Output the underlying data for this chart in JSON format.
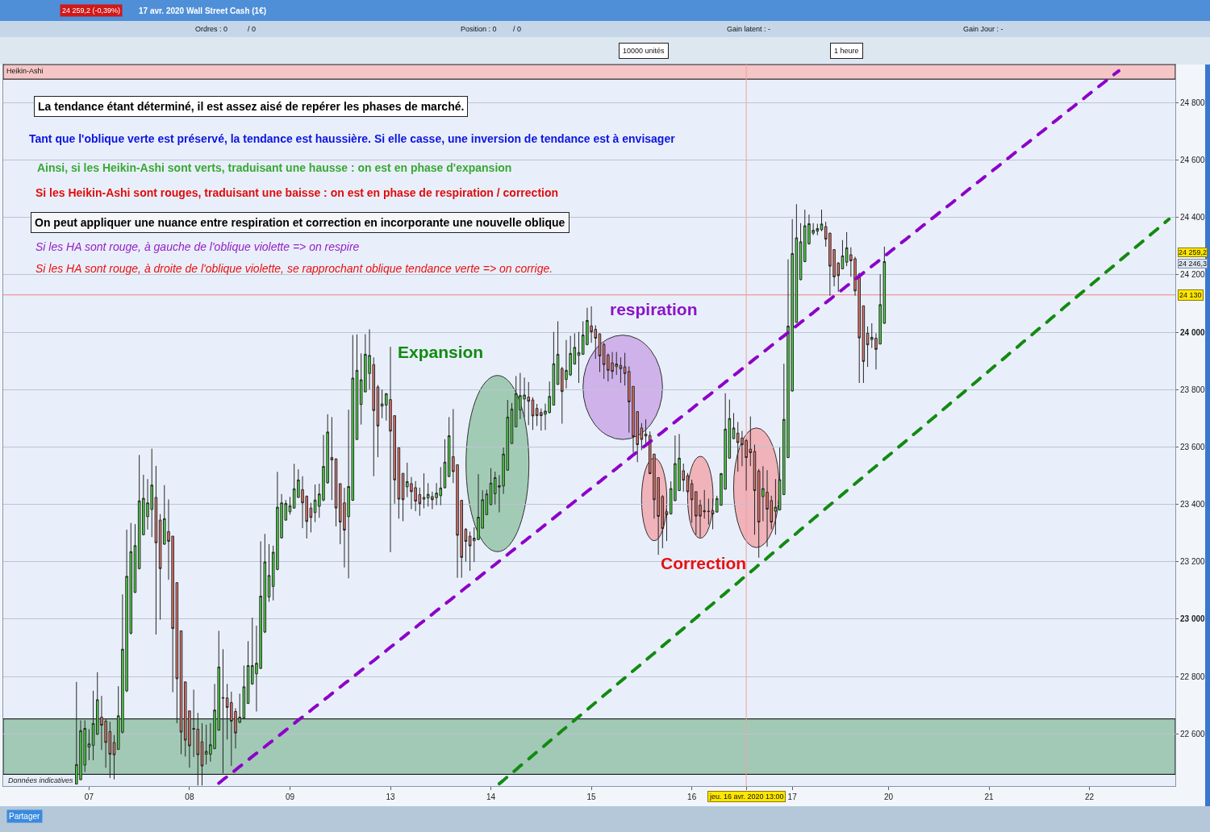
{
  "chart_data": {
    "type": "candlestick",
    "title": "17 avr. 2020 Wall Street Cash (1€)",
    "categories": [
      null,
      null,
      null,
      null,
      null,
      null,
      null,
      null,
      null,
      null,
      null,
      null,
      null,
      null,
      null,
      null,
      null,
      null,
      null,
      null,
      "07",
      null,
      null,
      null,
      null,
      null,
      null,
      null,
      null,
      null,
      null,
      null,
      null,
      null,
      null,
      null,
      null,
      null,
      null,
      null,
      null,
      null,
      null,
      null,
      "08",
      null,
      null,
      null,
      null,
      null,
      null,
      null,
      null,
      null,
      null,
      null,
      null,
      null,
      null,
      null,
      null,
      null,
      null,
      null,
      null,
      null,
      null,
      null,
      "09",
      null,
      null,
      null,
      null,
      null,
      null,
      null,
      null,
      null,
      null,
      null,
      null,
      null,
      null,
      null,
      null,
      null,
      null,
      null,
      null,
      null,
      null,
      null,
      "13",
      null,
      null,
      null,
      null,
      null,
      null,
      null,
      null,
      null,
      null,
      null,
      null,
      null,
      null,
      null,
      null,
      null,
      null,
      null,
      null,
      null,
      null,
      null,
      "14",
      null,
      null,
      null,
      null,
      null,
      null,
      null,
      null,
      null,
      null,
      null,
      null,
      null,
      null,
      null,
      null,
      null,
      null,
      null,
      null,
      null,
      null,
      null,
      "15",
      null,
      null,
      null,
      null,
      null,
      null,
      null,
      null,
      null,
      null,
      null,
      null,
      null,
      null,
      null,
      null,
      null,
      null,
      null,
      null,
      null,
      null,
      null,
      "16",
      null,
      null,
      null,
      null,
      null,
      null,
      null,
      null,
      null,
      null,
      null,
      null,
      "jeu. 16 avr. 2020 13:00",
      null,
      null,
      null,
      null,
      null,
      null,
      null,
      null,
      null,
      null,
      "17",
      null,
      null,
      null,
      null,
      null,
      null,
      null,
      null,
      null,
      null,
      null,
      null,
      null,
      null,
      null,
      null,
      null,
      null,
      null,
      null,
      null,
      null,
      "20",
      null,
      null,
      null,
      null,
      null,
      null,
      null,
      null,
      null,
      null,
      null,
      null,
      null,
      null,
      null,
      null,
      null,
      null,
      null,
      null,
      null,
      null,
      null,
      "21",
      null,
      null,
      null,
      null,
      null,
      null,
      null,
      null,
      null,
      null,
      null,
      null,
      null,
      null,
      null,
      null,
      null,
      null,
      null,
      null,
      null,
      null,
      null,
      "22",
      null,
      null,
      null,
      null,
      null,
      null,
      null,
      null,
      null,
      null,
      null,
      null,
      null,
      null,
      null,
      null,
      null,
      null,
      null,
      null
    ],
    "ohlc": [
      null,
      null,
      null,
      null,
      null,
      null,
      null,
      null,
      null,
      null,
      null,
      null,
      null,
      null,
      null,
      null,
      null,
      [
        22425,
        22781,
        22425,
        22493
      ],
      [
        22440,
        22647,
        22440,
        22611
      ],
      [
        22491,
        22647,
        22467,
        22619
      ],
      [
        22554,
        22616,
        22508,
        22565
      ],
      [
        22560,
        22750,
        22508,
        22636
      ],
      [
        22599,
        22815,
        22596,
        22719
      ],
      [
        22658,
        22732,
        22544,
        22630
      ],
      [
        22644,
        22652,
        22482,
        22570
      ],
      [
        22608,
        22642,
        22446,
        22529
      ],
      [
        22570,
        22596,
        22441,
        22527
      ],
      [
        22546,
        22766,
        22544,
        22663
      ],
      [
        22606,
        23086,
        22601,
        22895
      ],
      [
        22750,
        23312,
        22745,
        23149
      ],
      [
        22951,
        23335,
        22946,
        23235
      ],
      [
        23093,
        23331,
        23091,
        23256
      ],
      [
        23176,
        23572,
        23173,
        23412
      ],
      [
        23294,
        23503,
        23292,
        23421
      ],
      [
        23357,
        23488,
        23312,
        23405
      ],
      [
        23382,
        23594,
        23286,
        23467
      ],
      [
        23424,
        23534,
        22946,
        23266
      ],
      [
        23345,
        23366,
        22998,
        23176
      ],
      [
        23261,
        23467,
        23259,
        23350
      ],
      [
        23305,
        23417,
        23137,
        23271
      ],
      [
        23289,
        23289,
        22745,
        22967
      ],
      [
        23127,
        23127,
        22637,
        22792
      ],
      [
        22959,
        22959,
        22529,
        22606
      ],
      [
        22781,
        22781,
        22521,
        22578
      ],
      [
        22680,
        22680,
        22482,
        22558
      ],
      [
        22619,
        22754,
        22519,
        22616
      ],
      [
        22616,
        22673,
        22420,
        22527
      ],
      [
        22572,
        22637,
        22420,
        22488
      ],
      [
        22529,
        22632,
        22493,
        22539
      ],
      [
        22529,
        22637,
        22503,
        22562
      ],
      [
        22549,
        22774,
        22546,
        22683
      ],
      [
        22613,
        22959,
        22611,
        22833
      ],
      [
        22724,
        22895,
        22462,
        22726
      ],
      [
        22725,
        22774,
        22580,
        22692
      ],
      [
        22709,
        22747,
        22488,
        22644
      ],
      [
        22678,
        22689,
        22549,
        22603
      ],
      [
        22640,
        22740,
        22637,
        22658
      ],
      [
        22655,
        22838,
        22653,
        22764
      ],
      [
        22706,
        22923,
        22704,
        22838
      ],
      [
        22774,
        23005,
        22771,
        22838
      ],
      [
        22809,
        22977,
        22678,
        22846
      ],
      [
        22828,
        23271,
        22826,
        23080
      ],
      [
        22955,
        23297,
        22951,
        23199
      ],
      [
        23077,
        23261,
        23060,
        23152
      ],
      [
        23114,
        23256,
        23065,
        23233
      ],
      [
        23173,
        23513,
        23170,
        23390
      ],
      [
        23283,
        23436,
        23281,
        23405
      ],
      [
        23345,
        23415,
        23343,
        23403
      ],
      [
        23374,
        23426,
        23364,
        23395
      ],
      [
        23387,
        23541,
        23385,
        23454
      ],
      [
        23424,
        23522,
        23423,
        23485
      ],
      [
        23451,
        23498,
        23317,
        23405
      ],
      [
        23428,
        23431,
        23281,
        23340
      ],
      [
        23387,
        23405,
        23302,
        23354
      ],
      [
        23371,
        23469,
        23338,
        23415
      ],
      [
        23393,
        23472,
        23353,
        23436
      ],
      [
        23415,
        23642,
        23410,
        23532
      ],
      [
        23475,
        23714,
        23472,
        23652
      ],
      [
        23563,
        23704,
        23415,
        23555
      ],
      [
        23558,
        23560,
        23323,
        23387
      ],
      [
        23472,
        23472,
        23261,
        23338
      ],
      [
        23405,
        23457,
        23180,
        23310
      ],
      [
        23357,
        23730,
        23142,
        23462
      ],
      [
        23414,
        23990,
        23412,
        23840
      ],
      [
        23626,
        23992,
        23624,
        23867
      ],
      [
        23748,
        23926,
        23678,
        23834
      ],
      [
        23792,
        23993,
        23790,
        23923
      ],
      [
        23856,
        24010,
        23800,
        23919
      ],
      [
        23887,
        23912,
        23498,
        23727
      ],
      [
        23809,
        23816,
        23564,
        23673
      ],
      [
        23742,
        23800,
        23700,
        23750
      ],
      [
        23746,
        23786,
        23692,
        23786
      ],
      [
        23765,
        23949,
        23233,
        23655
      ],
      [
        23709,
        23709,
        23402,
        23485
      ],
      [
        23597,
        23597,
        23350,
        23418
      ],
      [
        23508,
        23508,
        23341,
        23416
      ],
      [
        23461,
        23545,
        23425,
        23479
      ],
      [
        23472,
        23495,
        23383,
        23444
      ],
      [
        23458,
        23481,
        23376,
        23411
      ],
      [
        23434,
        23458,
        23360,
        23402
      ],
      [
        23418,
        23508,
        23386,
        23424
      ],
      [
        23422,
        23474,
        23392,
        23435
      ],
      [
        23427,
        23444,
        23383,
        23416
      ],
      [
        23423,
        23474,
        23397,
        23439
      ],
      [
        23430,
        23530,
        23397,
        23457
      ],
      [
        23458,
        23627,
        23455,
        23547
      ],
      [
        23497,
        23704,
        23495,
        23639
      ],
      [
        23566,
        23732,
        23474,
        23514
      ],
      [
        23538,
        23538,
        23144,
        23292
      ],
      [
        23414,
        23414,
        23144,
        23215
      ],
      [
        23313,
        23317,
        23200,
        23271
      ],
      [
        23289,
        23305,
        23168,
        23255
      ],
      [
        23273,
        23320,
        23199,
        23282
      ],
      [
        23277,
        23505,
        23275,
        23355
      ],
      [
        23317,
        23449,
        23316,
        23416
      ],
      [
        23364,
        23451,
        23363,
        23436
      ],
      [
        23399,
        23526,
        23397,
        23474
      ],
      [
        23437,
        23514,
        23399,
        23493
      ],
      [
        23465,
        23502,
        23372,
        23460
      ],
      [
        23464,
        23598,
        23436,
        23575
      ],
      [
        23519,
        23764,
        23517,
        23704
      ],
      [
        23612,
        23753,
        23611,
        23732
      ],
      [
        23670,
        23847,
        23669,
        23786
      ],
      [
        23729,
        23858,
        23697,
        23779
      ],
      [
        23767,
        23842,
        23703,
        23781
      ],
      [
        23774,
        23826,
        23676,
        23759
      ],
      [
        23764,
        23773,
        23659,
        23708
      ],
      [
        23734,
        23750,
        23673,
        23709
      ],
      [
        23720,
        23734,
        23657,
        23709
      ],
      [
        23714,
        23751,
        23659,
        23725
      ],
      [
        23720,
        23828,
        23717,
        23776
      ],
      [
        23746,
        24001,
        23745,
        23890
      ],
      [
        23818,
        24038,
        23816,
        23923
      ],
      [
        23873,
        23879,
        23681,
        23793
      ],
      [
        23835,
        23973,
        23804,
        23867
      ],
      [
        23851,
        23987,
        23847,
        23926
      ],
      [
        23889,
        23996,
        23887,
        23947
      ],
      [
        23919,
        24001,
        23823,
        23929
      ],
      [
        23923,
        24038,
        23921,
        23990
      ],
      [
        23957,
        24085,
        23954,
        24041
      ],
      [
        24022,
        24090,
        23963,
        24001
      ],
      [
        24010,
        24024,
        23907,
        23979
      ],
      [
        23994,
        23996,
        23861,
        23917
      ],
      [
        23957,
        23963,
        23837,
        23887
      ],
      [
        23920,
        23926,
        23828,
        23867
      ],
      [
        23893,
        23931,
        23837,
        23863
      ],
      [
        23880,
        23931,
        23851,
        23889
      ],
      [
        23884,
        23912,
        23823,
        23873
      ],
      [
        23879,
        23928,
        23814,
        23856
      ],
      [
        23863,
        23881,
        23650,
        23757
      ],
      [
        23811,
        23811,
        23580,
        23636
      ],
      [
        23723,
        23723,
        23547,
        23608
      ],
      [
        23666,
        23683,
        23589,
        23626
      ],
      [
        23645,
        23696,
        23612,
        23638
      ],
      [
        23640,
        23654,
        23505,
        23507
      ],
      [
        23575,
        23575,
        23350,
        23416
      ],
      [
        23493,
        23493,
        23224,
        23358
      ],
      [
        23427,
        23432,
        23247,
        23316
      ],
      [
        23374,
        23383,
        23272,
        23364
      ],
      [
        23367,
        23480,
        23364,
        23455
      ],
      [
        23413,
        23640,
        23411,
        23542
      ],
      [
        23448,
        23645,
        23447,
        23561
      ],
      [
        23517,
        23542,
        23444,
        23484
      ],
      [
        23500,
        23509,
        23439,
        23444
      ],
      [
        23472,
        23486,
        23336,
        23416
      ],
      [
        23444,
        23444,
        23294,
        23359
      ],
      [
        23397,
        23416,
        23285,
        23359
      ],
      [
        23378,
        23450,
        23350,
        23374
      ],
      [
        23376,
        23420,
        23330,
        23375
      ],
      [
        23378,
        23420,
        23313,
        23366
      ],
      [
        23373,
        23430,
        23372,
        23420
      ],
      [
        23397,
        23509,
        23395,
        23507
      ],
      [
        23453,
        23787,
        23451,
        23662
      ],
      [
        23561,
        23765,
        23559,
        23699
      ],
      [
        23629,
        23718,
        23627,
        23666
      ],
      [
        23648,
        23687,
        23514,
        23615
      ],
      [
        23631,
        23656,
        23533,
        23608
      ],
      [
        23622,
        23628,
        23448,
        23563
      ],
      [
        23592,
        23706,
        23533,
        23580
      ],
      [
        23584,
        23608,
        23294,
        23448
      ],
      [
        23516,
        23523,
        23214,
        23338
      ],
      [
        23427,
        23533,
        23341,
        23455
      ],
      [
        23442,
        23519,
        23252,
        23383
      ],
      [
        23413,
        23430,
        23313,
        23338
      ],
      [
        23376,
        23488,
        23294,
        23390
      ],
      [
        23381,
        23598,
        23378,
        23486
      ],
      [
        23434,
        23890,
        23432,
        23696
      ],
      [
        23563,
        24254,
        23561,
        24021
      ],
      [
        23795,
        24394,
        23793,
        24274
      ],
      [
        24034,
        24446,
        24034,
        24329
      ],
      [
        24183,
        24380,
        24181,
        24315
      ],
      [
        24246,
        24427,
        24244,
        24371
      ],
      [
        24308,
        24410,
        24305,
        24378
      ],
      [
        24345,
        24380,
        24338,
        24355
      ],
      [
        24352,
        24378,
        24338,
        24361
      ],
      [
        24357,
        24427,
        24352,
        24377
      ],
      [
        24368,
        24385,
        24298,
        24324
      ],
      [
        24345,
        24347,
        24127,
        24230
      ],
      [
        24288,
        24288,
        24160,
        24193
      ],
      [
        24241,
        24244,
        24141,
        24197
      ],
      [
        24221,
        24321,
        24219,
        24266
      ],
      [
        24244,
        24349,
        24230,
        24294
      ],
      [
        24270,
        24296,
        24193,
        24249
      ],
      [
        24256,
        24263,
        24127,
        24144
      ],
      [
        24202,
        24207,
        23823,
        23980
      ],
      [
        24092,
        24092,
        23823,
        23898
      ],
      [
        23996,
        24020,
        23879,
        23956
      ],
      [
        23974,
        24031,
        23945,
        23982
      ],
      [
        23979,
        23996,
        23870,
        23940
      ],
      [
        23959,
        24202,
        23957,
        24096
      ],
      [
        24031,
        24298,
        24029,
        24246
      ],
      null,
      null,
      null,
      null,
      null,
      null,
      null,
      null,
      null,
      null,
      null,
      null,
      null,
      null,
      null,
      null,
      null,
      null,
      null,
      null,
      null,
      null,
      null,
      null,
      null,
      null,
      null,
      null,
      null,
      null,
      null,
      null,
      null,
      null,
      null,
      null,
      null,
      null,
      null,
      null,
      null,
      null,
      null,
      null,
      null,
      null,
      null,
      null,
      null,
      null,
      null,
      null,
      null,
      null,
      null,
      null,
      null,
      null,
      null,
      null,
      null,
      null,
      null,
      null,
      null,
      null,
      null,
      null,
      null
    ],
    "series": [
      {
        "type": "line",
        "color": "#8c00c8",
        "line_style": "dashed",
        "values": [
          null,
          null,
          null,
          null,
          null,
          null,
          null,
          null,
          null,
          null,
          null,
          null,
          null,
          null,
          null,
          null,
          null,
          null,
          null,
          null,
          null,
          null,
          null,
          null,
          null,
          null,
          null,
          null,
          null,
          null,
          null,
          null,
          null,
          null,
          null,
          null,
          null,
          null,
          null,
          null,
          null,
          null,
          null,
          null,
          null,
          null,
          null,
          null,
          null,
          null,
          null,
          22428,
          22440,
          22451,
          22463,
          22474,
          22486,
          22497,
          22509,
          22521,
          22532,
          22544,
          22555,
          22567,
          22578,
          22590,
          22601,
          22613,
          22624,
          22636,
          22648,
          22659,
          22671,
          22682,
          22694,
          22705,
          22717,
          22728,
          22740,
          22752,
          22763,
          22775,
          22786,
          22798,
          22809,
          22821,
          22832,
          22844,
          22855,
          22867,
          22879,
          22890,
          22902,
          22913,
          22925,
          22936,
          22948,
          22959,
          22971,
          22983,
          22994,
          23006,
          23017,
          23029,
          23040,
          23052,
          23063,
          23075,
          23086,
          23098,
          23110,
          23121,
          23133,
          23144,
          23156,
          23167,
          23179,
          23190,
          23202,
          23214,
          23225,
          23237,
          23248,
          23260,
          23271,
          23283,
          23294,
          23306,
          23317,
          23329,
          23341,
          23352,
          23364,
          23375,
          23387,
          23398,
          23410,
          23421,
          23433,
          23445,
          23456,
          23468,
          23479,
          23491,
          23502,
          23514,
          23525,
          23537,
          23548,
          23560,
          23572,
          23583,
          23595,
          23606,
          23618,
          23629,
          23641,
          23652,
          23664,
          23676,
          23687,
          23699,
          23710,
          23722,
          23733,
          23745,
          23756,
          23768,
          23779,
          23791,
          23803,
          23814,
          23826,
          23837,
          23849,
          23860,
          23872,
          23883,
          23895,
          23907,
          23918,
          23930,
          23941,
          23953,
          23964,
          23976,
          23987,
          23999,
          24010,
          24022,
          24034,
          24045,
          24057,
          24068,
          24080,
          24091,
          24103,
          24114,
          24126,
          24138,
          24149,
          24161,
          24172,
          24184,
          24195,
          24207,
          24218,
          24230,
          24241,
          24253,
          24265,
          24276,
          24288,
          24299,
          24311,
          24322,
          24334,
          24345,
          24357,
          24369,
          24380,
          24392,
          24403,
          24415,
          24426,
          24438,
          24449,
          24461,
          24472,
          24484,
          24496,
          24507,
          24519,
          24530,
          24542,
          24553,
          24565,
          24576,
          24588,
          24600,
          24611,
          24623,
          24634,
          24646,
          24657,
          24669,
          24680,
          24692,
          24703,
          24715,
          24727,
          24738,
          24750,
          24761,
          24773,
          24784,
          24796,
          24807,
          24819,
          24831,
          24842,
          24854,
          24865,
          24877,
          24888,
          24900,
          24911,
          null,
          null,
          null,
          null,
          null,
          null,
          null,
          null,
          null,
          null,
          null,
          null,
          null
        ]
      },
      {
        "type": "line",
        "color": "#128a12",
        "line_style": "dashed",
        "values": [
          null,
          null,
          null,
          null,
          null,
          null,
          null,
          null,
          null,
          null,
          null,
          null,
          null,
          null,
          null,
          null,
          null,
          null,
          null,
          null,
          null,
          null,
          null,
          null,
          null,
          null,
          null,
          null,
          null,
          null,
          null,
          null,
          null,
          null,
          null,
          null,
          null,
          null,
          null,
          null,
          null,
          null,
          null,
          null,
          null,
          null,
          null,
          null,
          null,
          null,
          null,
          null,
          null,
          null,
          null,
          null,
          null,
          null,
          null,
          null,
          null,
          null,
          null,
          null,
          null,
          null,
          null,
          null,
          null,
          null,
          null,
          null,
          null,
          null,
          null,
          null,
          null,
          null,
          null,
          null,
          null,
          null,
          null,
          null,
          null,
          null,
          null,
          null,
          null,
          null,
          null,
          null,
          null,
          null,
          null,
          null,
          null,
          null,
          null,
          null,
          null,
          null,
          null,
          null,
          null,
          null,
          null,
          null,
          null,
          null,
          null,
          null,
          null,
          null,
          null,
          null,
          null,
          null,
          22426,
          22438,
          22451,
          22463,
          22475,
          22488,
          22500,
          22512,
          22525,
          22537,
          22549,
          22561,
          22574,
          22586,
          22598,
          22611,
          22623,
          22635,
          22648,
          22660,
          22672,
          22684,
          22697,
          22709,
          22721,
          22734,
          22746,
          22758,
          22771,
          22783,
          22795,
          22807,
          22820,
          22832,
          22844,
          22857,
          22869,
          22881,
          22894,
          22906,
          22918,
          22930,
          22943,
          22955,
          22967,
          22980,
          22992,
          23004,
          23017,
          23029,
          23041,
          23053,
          23066,
          23078,
          23090,
          23103,
          23115,
          23127,
          23140,
          23152,
          23164,
          23176,
          23189,
          23201,
          23213,
          23226,
          23238,
          23250,
          23263,
          23275,
          23287,
          23299,
          23312,
          23324,
          23336,
          23349,
          23361,
          23373,
          23386,
          23398,
          23410,
          23422,
          23435,
          23447,
          23459,
          23472,
          23484,
          23496,
          23509,
          23521,
          23533,
          23545,
          23558,
          23570,
          23582,
          23595,
          23607,
          23619,
          23632,
          23644,
          23656,
          23668,
          23681,
          23693,
          23705,
          23718,
          23730,
          23742,
          23755,
          23767,
          23779,
          23791,
          23804,
          23816,
          23828,
          23841,
          23853,
          23865,
          23878,
          23890,
          23902,
          23914,
          23927,
          23939,
          23951,
          23964,
          23976,
          23988,
          24001,
          24013,
          24025,
          24037,
          24050,
          24062,
          24074,
          24087,
          24099,
          24111,
          24124,
          24136,
          24148,
          24160,
          24173,
          24185,
          24197,
          24210,
          24222,
          24234,
          24247,
          24259,
          24271,
          24283,
          24296,
          24308,
          24320,
          24333,
          24345,
          24357,
          24370,
          24382,
          24394,
          null
        ]
      }
    ],
    "ylim": [
      22418,
      24933
    ],
    "yticks": [
      {
        "value": 22600,
        "label": "22 600"
      },
      {
        "value": 22800,
        "label": "22 800"
      },
      {
        "value": 23000,
        "label": "23 000"
      },
      {
        "value": 23200,
        "label": "23 200"
      },
      {
        "value": 23400,
        "label": "23 400"
      },
      {
        "value": 23600,
        "label": "23 600"
      },
      {
        "value": 23800,
        "label": "23 800"
      },
      {
        "value": 24000,
        "label": "24 000"
      },
      {
        "value": 24200,
        "label": "24 200"
      },
      {
        "value": 24400,
        "label": "24 400"
      },
      {
        "value": 24600,
        "label": "24 600"
      },
      {
        "value": 24800,
        "label": "24 800"
      }
    ],
    "grid": "y",
    "ref_lines": [
      {
        "axis": "y",
        "value": 24130,
        "label": "24 130",
        "color": "#f08080"
      },
      {
        "axis": "x",
        "value": "jeu. 16 avr. 2020 13:00",
        "color": "#f0a0a0"
      }
    ],
    "bands": [
      {
        "axis": "y",
        "from": 22459,
        "to": 22652,
        "color": "#a2c9b5"
      },
      {
        "axis": "y",
        "from": 24882,
        "to": 24933,
        "color": "#f5c6c6"
      }
    ],
    "annotations": [
      "La tendance étant déterminé, il est assez aisé de repérer les phases de marché.",
      "Tant que l'oblique verte est préservé, la tendance est haussière. Si elle casse, une inversion de tendance est à envisager",
      "Ainsi, si les Heikin-Ashi sont verts, traduisant une hausse : on est en phase d'expansion",
      "Si les Heikin-Ashi sont rouges, traduisant une baisse : on est en phase de respiration / correction",
      "On peut appliquer une nuance entre respiration et correction en incorporante une nouvelle oblique",
      "Si les HA sont rouge, à gauche de l'oblique violette => on respire",
      "Si les HA sont rouge, à droite de l'oblique violette, se rapprochant oblique tendance verte => on corrige.",
      "Expansion",
      "respiration",
      "Correction",
      "Données indicatives",
      "24 259,2 (-0,39%)",
      "Ordres : 0",
      "/ 0",
      "Position : 0",
      "/ 0",
      "Gain latent : -",
      "Gain Jour : -",
      "10000 unités",
      "1 heure",
      "Heikin-Ashi",
      "Partager",
      "24 259,2",
      "24 246,3"
    ]
  }
}
